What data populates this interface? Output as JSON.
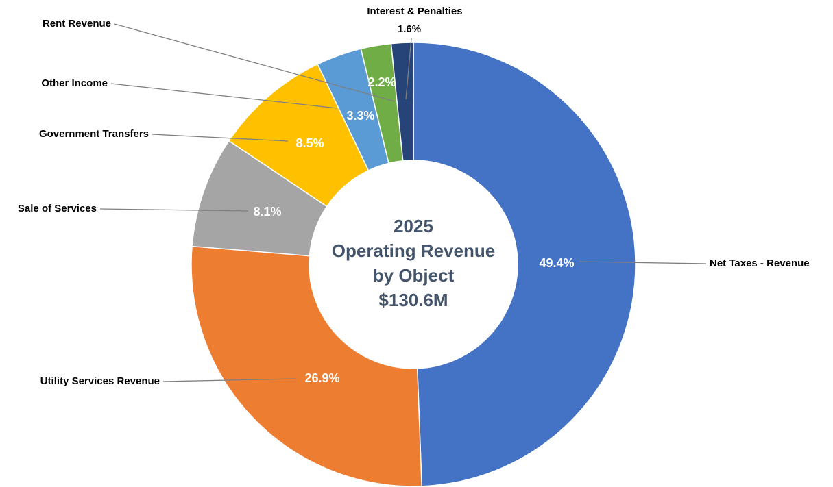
{
  "chart_data": {
    "type": "donut",
    "center_text": [
      "2025",
      "Operating Revenue",
      "by Object",
      "$130.6M"
    ],
    "categories": [
      "Net Taxes - Revenue",
      "Utility Services Revenue",
      "Sale of Services",
      "Government Transfers",
      "Other Income",
      "Rent Revenue",
      "Interest & Penalties"
    ],
    "values": [
      49.4,
      26.9,
      8.1,
      8.5,
      3.3,
      2.2,
      1.6
    ],
    "value_labels": [
      "49.4%",
      "26.9%",
      "8.1%",
      "8.5%",
      "3.3%",
      "2.2%",
      "1.6%"
    ],
    "colors": [
      "#4472c4",
      "#ed7d31",
      "#a5a5a5",
      "#ffc000",
      "#5b9bd5",
      "#70ad47",
      "#264478"
    ]
  }
}
